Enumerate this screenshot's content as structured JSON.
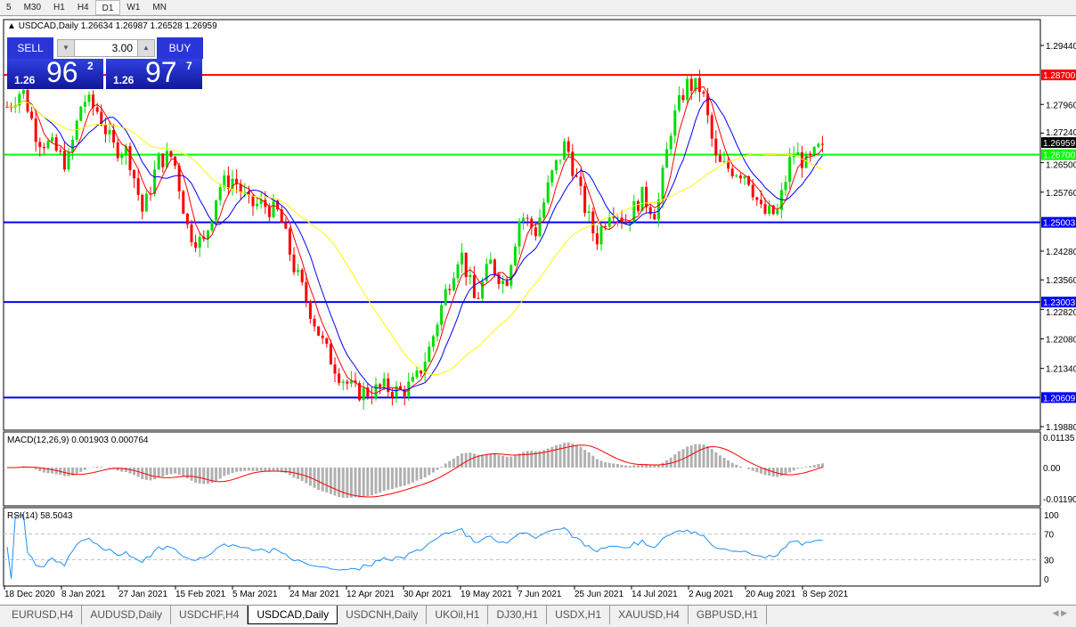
{
  "timeframes": [
    "5",
    "M30",
    "H1",
    "H4",
    "D1",
    "W1",
    "MN"
  ],
  "active_timeframe": "D1",
  "header": {
    "symbol": "USDCAD,Daily",
    "ohlc": "1.26634 1.26987 1.26528 1.26959"
  },
  "trade_panel": {
    "sell_label": "SELL",
    "buy_label": "BUY",
    "lot": "3.00",
    "sell_prefix": "1.26",
    "sell_big": "96",
    "sell_pip": "2",
    "buy_prefix": "1.26",
    "buy_big": "97",
    "buy_pip": "7"
  },
  "tabs": [
    "EURUSD,H4",
    "AUDUSD,Daily",
    "USDCHF,H4",
    "USDCAD,Daily",
    "USDCNH,Daily",
    "UKOil,H1",
    "DJ30,H1",
    "USDX,H1",
    "XAUUSD,H4",
    "GBPUSD,H1"
  ],
  "active_tab": "USDCAD,Daily",
  "chart_data": {
    "type": "candlestick",
    "ylim": [
      1.1988,
      1.2944
    ],
    "y_ticks": [
      "1.29440",
      "1.27960",
      "1.27240",
      "1.26500",
      "1.25760",
      "1.24280",
      "1.23560",
      "1.22820",
      "1.22080",
      "1.21340",
      "1.19880"
    ],
    "x_ticks": [
      "18 Dec 2020",
      "8 Jan 2021",
      "27 Jan 2021",
      "15 Feb 2021",
      "5 Mar 2021",
      "24 Mar 2021",
      "12 Apr 2021",
      "30 Apr 2021",
      "19 May 2021",
      "7 Jun 2021",
      "25 Jun 2021",
      "14 Jul 2021",
      "2 Aug 2021",
      "20 Aug 2021",
      "8 Sep 2021"
    ],
    "close_path": [
      1.279,
      1.2835,
      1.2712,
      1.2689,
      1.2645,
      1.2812,
      1.2779,
      1.2689,
      1.2678,
      1.2522,
      1.2656,
      1.2667,
      1.2477,
      1.2444,
      1.2589,
      1.2611,
      1.2544,
      1.2544,
      1.2522,
      1.2388,
      1.2287,
      1.2187,
      1.212,
      1.2075,
      1.2075,
      1.2086,
      1.2075,
      1.2097,
      1.2187,
      1.2321,
      1.2432,
      1.2298,
      1.2399,
      1.2343,
      1.2522,
      1.2477,
      1.2611,
      1.2701,
      1.2567,
      1.2455,
      1.2544,
      1.25,
      1.2567,
      1.2522,
      1.2745,
      1.2846,
      1.2835,
      1.2645,
      1.2634,
      1.2622,
      1.2522,
      1.2522,
      1.2678,
      1.2645,
      1.26959
    ],
    "current_price": "1.26959",
    "levels": [
      {
        "value": "1.28700",
        "color": "#ff0000"
      },
      {
        "value": "1.26700",
        "color": "#00ff00"
      },
      {
        "value": "1.25003",
        "color": "#0000ff"
      },
      {
        "value": "1.23003",
        "color": "#0000ff"
      },
      {
        "value": "1.20609",
        "color": "#0000ff"
      }
    ],
    "moving_average_colors": [
      "#ff0000",
      "#0000ff",
      "#ffff00"
    ],
    "up_color": "#00dd00",
    "down_color": "#ff0000",
    "macd": {
      "label": "MACD(12,26,9) 0.001903 0.000764",
      "ticks": [
        "0.01135",
        "0.00",
        "-0.01190"
      ],
      "ylim": [
        -0.0119,
        0.01135
      ]
    },
    "rsi": {
      "label": "RSI(14) 58.5043",
      "ticks": [
        "100",
        "70",
        "30",
        "0"
      ],
      "levels": [
        70,
        30
      ],
      "color": "#1e90ff"
    }
  }
}
